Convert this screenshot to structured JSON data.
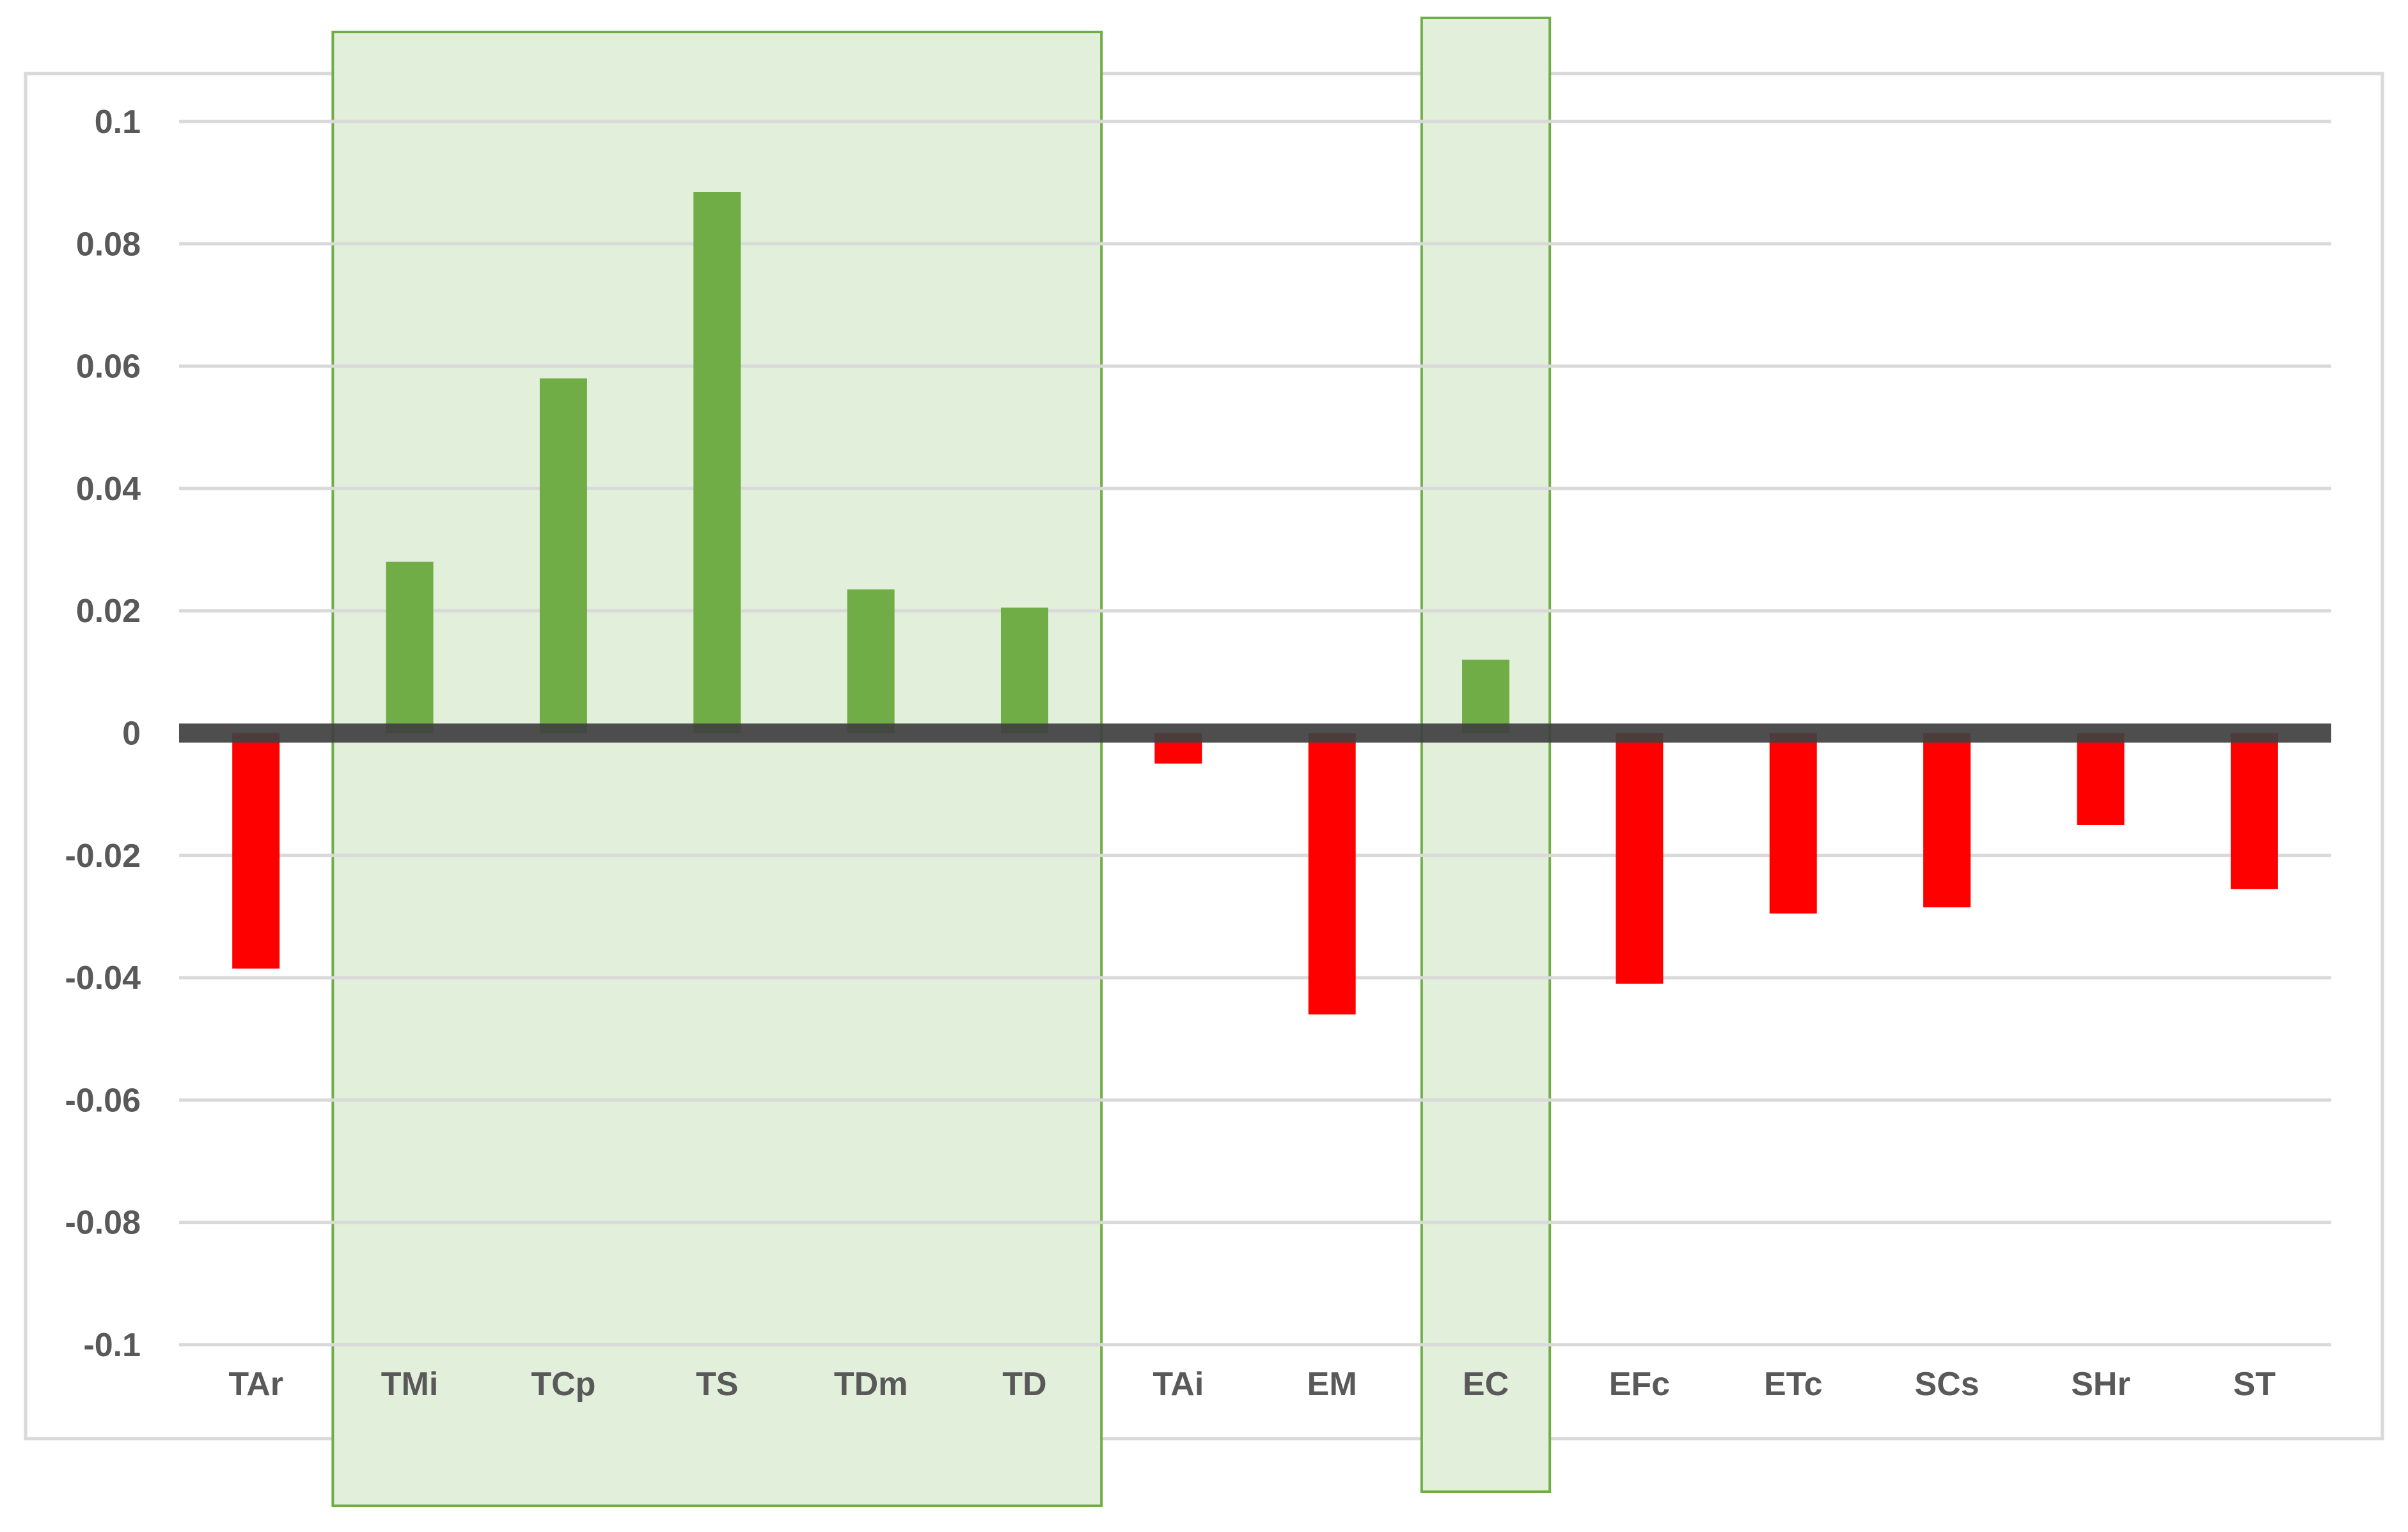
{
  "chart_data": {
    "type": "bar",
    "title": "",
    "xlabel": "",
    "ylabel": "",
    "categories": [
      "TAr",
      "TMi",
      "TCp",
      "TS",
      "TDm",
      "TD",
      "TAi",
      "EM",
      "EC",
      "EFc",
      "ETc",
      "SCs",
      "SHr",
      "ST"
    ],
    "values": [
      -0.0385,
      0.028,
      0.058,
      0.0885,
      0.0235,
      0.0205,
      -0.005,
      -0.046,
      0.012,
      -0.041,
      -0.0295,
      -0.0285,
      -0.015,
      -0.0255
    ],
    "ylim": [
      -0.1,
      0.1
    ],
    "yticks": [
      "0.1",
      "0.08",
      "0.06",
      "0.04",
      "0.02",
      "0",
      "-0.02",
      "-0.04",
      "-0.06",
      "-0.08",
      "-0.1"
    ],
    "grid": true,
    "legend": "none",
    "colors": {
      "positive": "#70AD47",
      "negative": "#FF0000",
      "highlight_fill": "#E2EFDA",
      "highlight_border": "#70AD47",
      "zero_line": "#404040",
      "gridline": "#D9D9D9",
      "tick_text": "#595959"
    },
    "highlight_groups": [
      [
        "TMi",
        "TCp",
        "TS",
        "TDm",
        "TD"
      ],
      [
        "EC"
      ]
    ]
  }
}
